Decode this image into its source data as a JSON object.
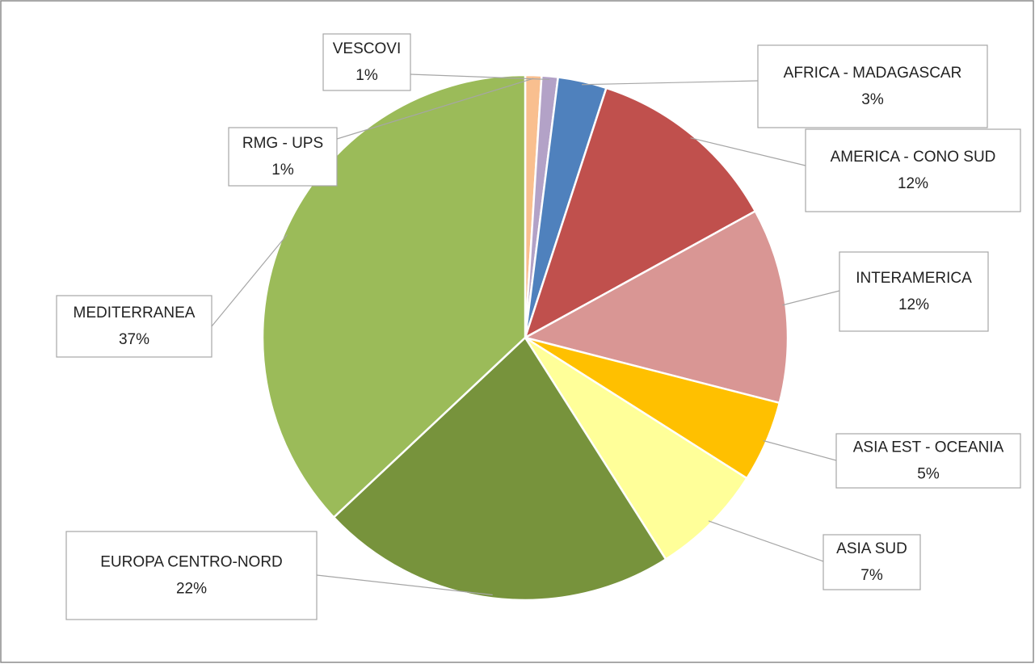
{
  "chart_data": {
    "type": "pie",
    "categories": [
      "RMG - UPS",
      "VESCOVI",
      "AFRICA - MADAGASCAR",
      "AMERICA - CONO SUD",
      "INTERAMERICA",
      "ASIA EST - OCEANIA",
      "ASIA SUD",
      "EUROPA CENTRO-NORD",
      "MEDITERRANEA"
    ],
    "values": [
      1,
      1,
      3,
      12,
      12,
      5,
      7,
      22,
      37
    ],
    "value_labels": [
      "1%",
      "1%",
      "3%",
      "12%",
      "12%",
      "5%",
      "7%",
      "22%",
      "37%"
    ],
    "colors": [
      "#f9bf8f",
      "#b3a2c7",
      "#4f81bd",
      "#c0504d",
      "#d99694",
      "#ffc000",
      "#ffff99",
      "#77933c",
      "#9bbb59"
    ]
  }
}
